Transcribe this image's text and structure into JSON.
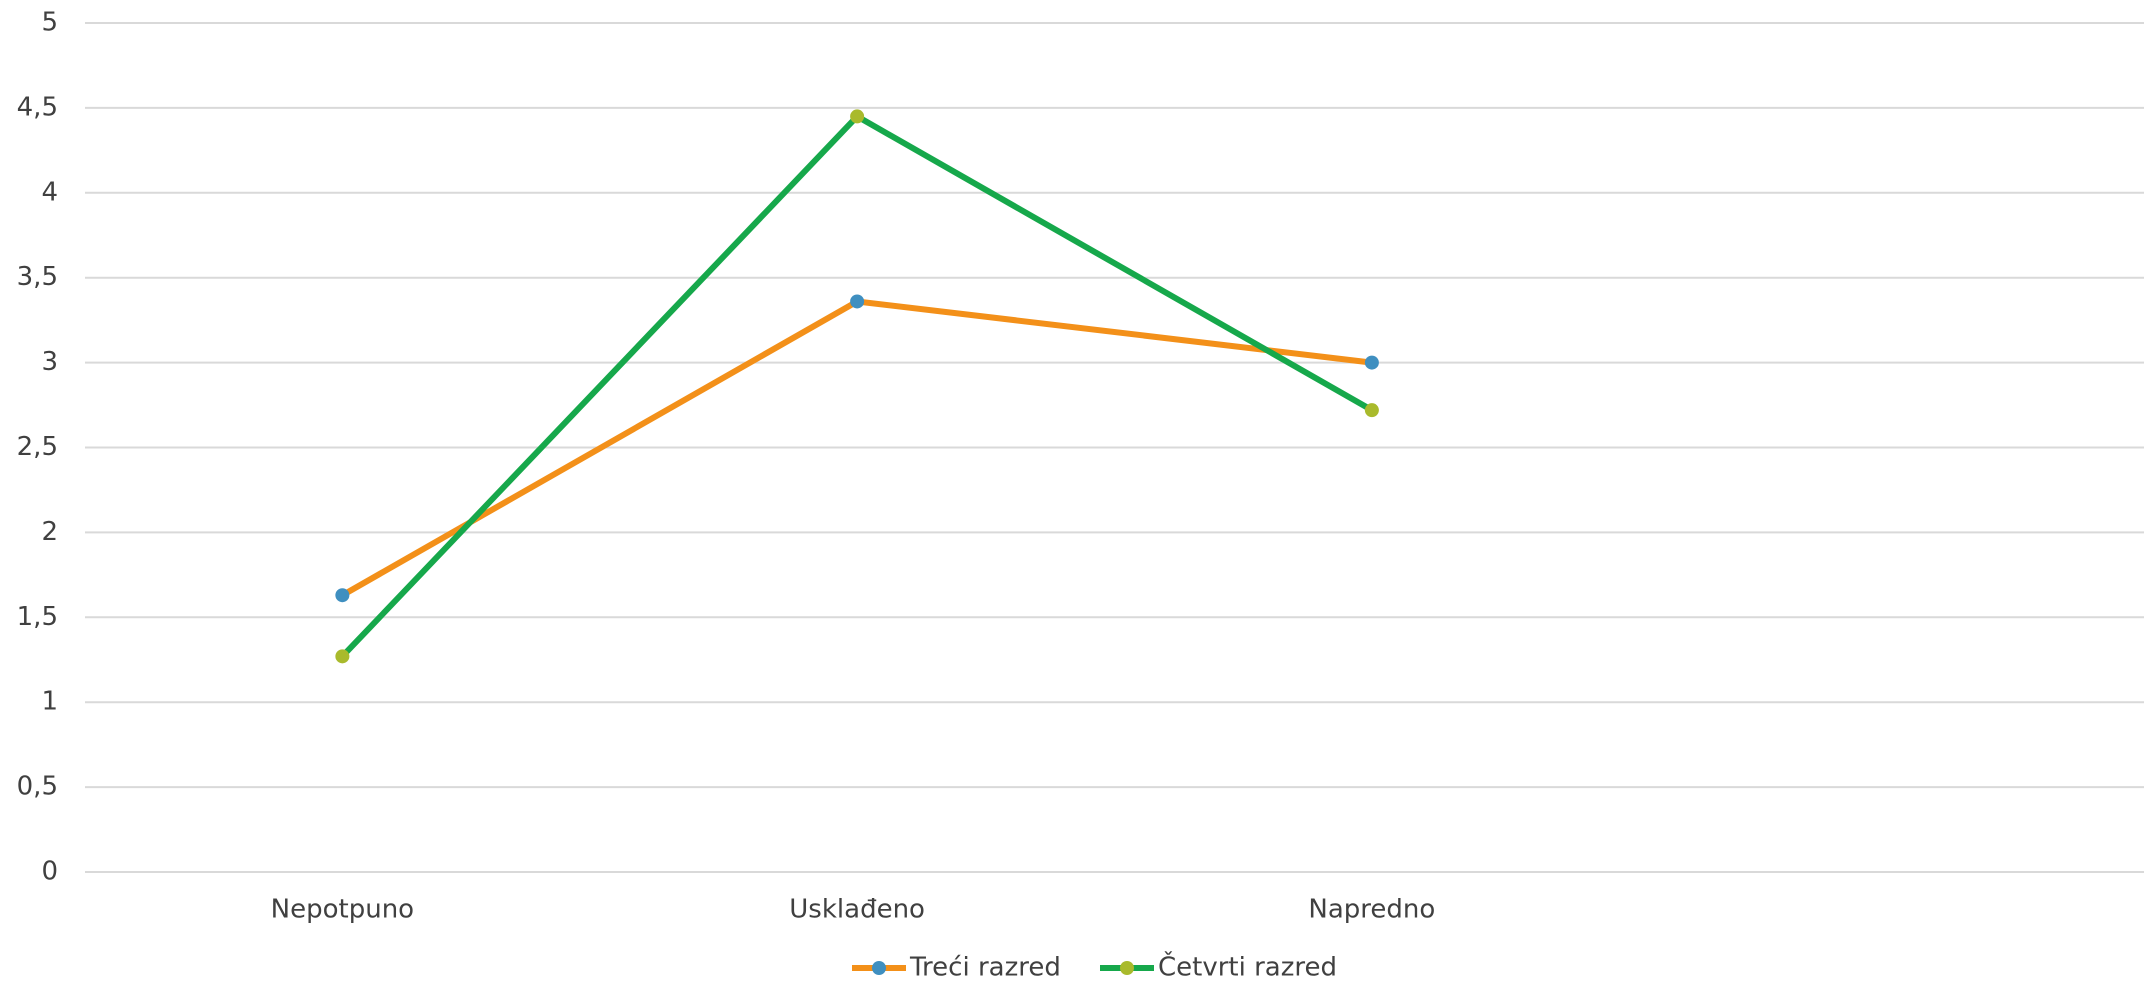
{
  "chart_data": {
    "type": "line",
    "categories": [
      "Nepotpuno",
      "Usklađeno",
      "Napredno",
      null
    ],
    "series": [
      {
        "name": "Treći razred",
        "color": "#f39019",
        "marker_color": "#3f8fc0",
        "values": [
          1.63,
          3.36,
          3.0,
          null
        ]
      },
      {
        "name": "Četvrti razred",
        "color": "#16a84b",
        "marker_color": "#a9ba2c",
        "values": [
          1.27,
          4.45,
          2.72,
          null
        ]
      }
    ],
    "ylim": [
      0,
      5
    ],
    "yticks": [
      0,
      {
        "value": 0.5,
        "label": "0,5"
      },
      1,
      {
        "value": 1.5,
        "label": "1,5"
      },
      2,
      {
        "value": 2.5,
        "label": "2,5"
      },
      3,
      {
        "value": 3.5,
        "label": "3,5"
      },
      4,
      {
        "value": 4.5,
        "label": "4,5"
      },
      5
    ],
    "grid": true,
    "legend": "bottom"
  }
}
